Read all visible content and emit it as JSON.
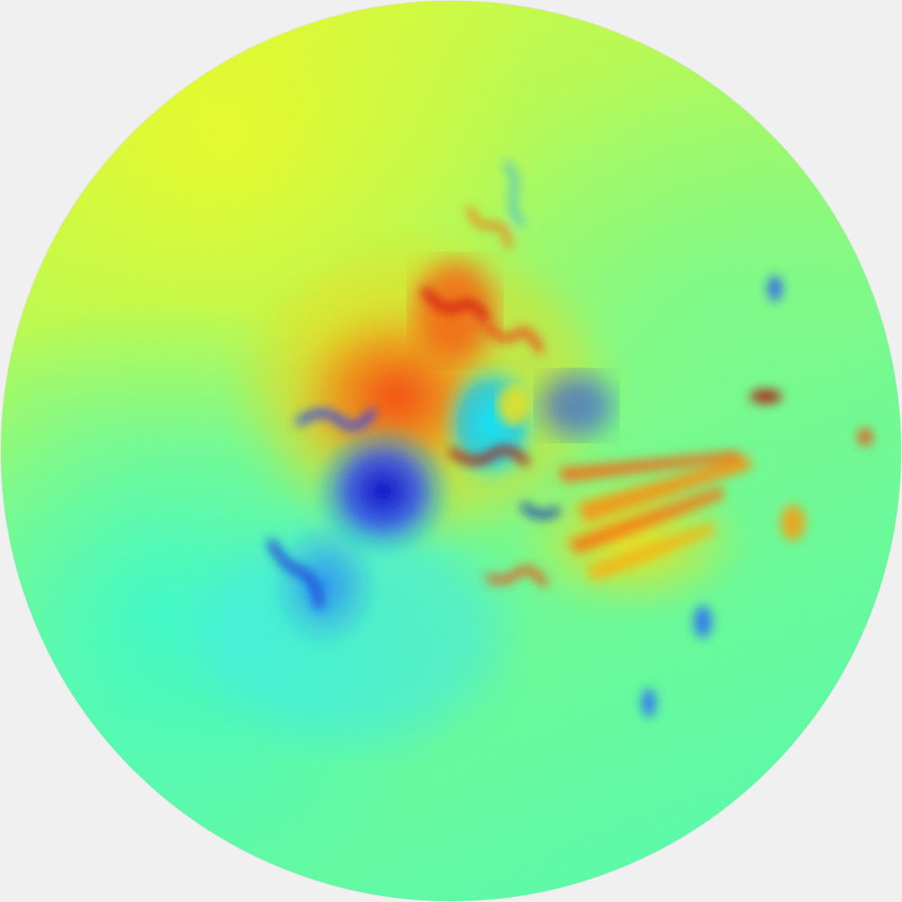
{
  "image": {
    "kind": "radial false-color map (jet-like colormap)",
    "background": "#f0f0f0",
    "colormap": [
      "#00007f",
      "#0000ff",
      "#007fff",
      "#00ffff",
      "#5dff9a",
      "#a8ff55",
      "#ffff00",
      "#ff7f00",
      "#ff0000",
      "#7f0000"
    ],
    "dominant_colors": {
      "outer_field": "#8cff78",
      "upper_left": "#c8ff3c",
      "lower_left": "#39ffd2",
      "central_red": "#ff3a00",
      "central_blue": "#0000dc",
      "cyan_patch": "#00e6ff",
      "yellow_streaks": "#ffd200"
    }
  }
}
